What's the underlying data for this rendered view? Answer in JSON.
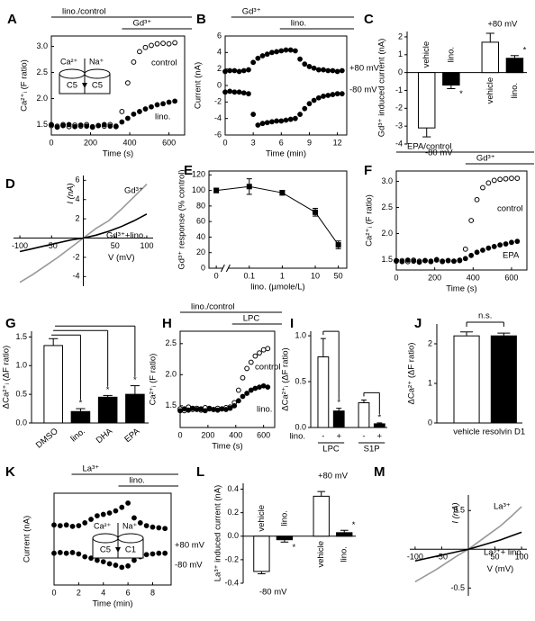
{
  "chart_data": [
    {
      "panel": "A",
      "type": "line",
      "xlabel": "Time (s)",
      "ylabel": "Ca²⁺ᵢ (F ratio)",
      "x": [
        0,
        30,
        60,
        90,
        120,
        150,
        180,
        210,
        240,
        270,
        300,
        330,
        360,
        390,
        420,
        450,
        480,
        510,
        540,
        570,
        600,
        630
      ],
      "xlim": [
        0,
        680
      ],
      "xticks": [
        0,
        200,
        400,
        600
      ],
      "ylim": [
        1.3,
        3.2
      ],
      "yticks": [
        1.5,
        {
          "value": 2,
          "label": "2.0"
        },
        2.5,
        {
          "value": 3,
          "label": "3.0"
        }
      ],
      "series": [
        {
          "name": "control",
          "marker": "open",
          "color": "#000000",
          "values": [
            1.48,
            1.47,
            1.5,
            1.46,
            1.49,
            1.47,
            1.5,
            1.46,
            1.48,
            1.47,
            1.5,
            1.47,
            1.75,
            2.3,
            2.7,
            2.9,
            2.98,
            3.02,
            3.05,
            3.06,
            3.05,
            3.07
          ]
        },
        {
          "name": "lino.",
          "marker": "filled",
          "color": "#000000",
          "values": [
            1.5,
            1.45,
            1.48,
            1.5,
            1.46,
            1.49,
            1.47,
            1.45,
            1.48,
            1.5,
            1.47,
            1.46,
            1.55,
            1.62,
            1.7,
            1.75,
            1.8,
            1.84,
            1.88,
            1.9,
            1.93,
            1.95
          ]
        }
      ],
      "annotations": [
        "lino./control",
        "Gd³⁺"
      ],
      "inset": [
        "Ca²⁺",
        "Na⁺",
        "C5",
        "C5"
      ]
    },
    {
      "panel": "B",
      "type": "line",
      "xlabel": "Time (min)",
      "ylabel": "Current (nA)",
      "x": [
        0,
        0.5,
        1,
        1.5,
        2,
        2.5,
        3,
        3.5,
        4,
        4.5,
        5,
        5.5,
        6,
        6.5,
        7,
        7.5,
        8,
        8.5,
        9,
        9.5,
        10,
        10.5,
        11,
        11.5,
        12,
        12.5
      ],
      "xlim": [
        0,
        13
      ],
      "xticks": [
        0,
        3,
        6,
        9,
        12
      ],
      "ylim": [
        -6,
        6
      ],
      "yticks": [
        -6,
        -4,
        -2,
        0,
        2,
        4,
        6
      ],
      "series": [
        {
          "name": "+80 mV",
          "marker": "filled",
          "color": "#000000",
          "values": [
            1.7,
            1.8,
            1.8,
            1.7,
            1.8,
            1.9,
            2.8,
            3.3,
            3.6,
            3.8,
            4.0,
            4.1,
            4.2,
            4.3,
            4.3,
            4.2,
            3.2,
            2.6,
            2.3,
            2.1,
            1.9,
            1.9,
            1.8,
            1.8,
            1.7,
            1.8
          ]
        },
        {
          "name": "-80 mV",
          "marker": "filled",
          "color": "#000000",
          "values": [
            -0.8,
            -0.7,
            -0.8,
            -0.8,
            -0.9,
            -1.0,
            -3.5,
            -4.8,
            -4.6,
            -4.5,
            -4.4,
            -4.3,
            -4.3,
            -4.2,
            -4.1,
            -4.0,
            -3.5,
            -2.8,
            -2.2,
            -1.8,
            -1.5,
            -1.3,
            -1.2,
            -1.1,
            -1.0,
            -1.0
          ]
        }
      ],
      "annotations": [
        "Gd³⁺",
        "lino."
      ]
    },
    {
      "panel": "C",
      "type": "bar",
      "ylabel": "Gd³⁺ induced current (nA)",
      "categories": [
        "vehicle",
        "lino.",
        "vehicle",
        "lino."
      ],
      "values": [
        -3.1,
        -0.7,
        1.7,
        0.8
      ],
      "errors": [
        0.5,
        0.2,
        0.5,
        0.15
      ],
      "colors": [
        "#ffffff",
        "#000000",
        "#ffffff",
        "#000000"
      ],
      "ylim": [
        -4,
        2.3
      ],
      "yticks": [
        -4,
        -3,
        -2,
        -1,
        0,
        1,
        2
      ],
      "group_labels": [
        "-80 mV",
        "+80 mV"
      ],
      "annotations": [
        "*",
        "*"
      ]
    },
    {
      "panel": "D",
      "type": "iv",
      "xlabel": "V (mV)",
      "ylabel": "I (nA)",
      "x": [
        -100,
        -80,
        -60,
        -40,
        -20,
        0,
        20,
        40,
        60,
        80,
        100
      ],
      "xlim": [
        -110,
        110
      ],
      "xticks": [
        -100,
        -50,
        50,
        100
      ],
      "ylim": [
        -5,
        6.5
      ],
      "yticks": [
        -4,
        -2,
        2,
        4,
        6
      ],
      "series": [
        {
          "name": "Gd³⁺",
          "color": "#999999",
          "values": [
            -4.6,
            -3.8,
            -2.9,
            -2.0,
            -1.0,
            0,
            1.0,
            1.8,
            3.0,
            4.3,
            5.6
          ]
        },
        {
          "name": "Gd³⁺+lino.",
          "color": "#000000",
          "values": [
            -1.4,
            -1.1,
            -0.8,
            -0.5,
            -0.2,
            0,
            0.3,
            0.7,
            1.2,
            1.8,
            2.5
          ]
        }
      ]
    },
    {
      "panel": "E",
      "type": "dose",
      "xscale": "log",
      "xlabel": "lino. (µmole/L)",
      "ylabel": "Gd³⁺ response (% control)",
      "x": [
        0.01,
        0.1,
        1,
        10,
        50
      ],
      "values": [
        100,
        105,
        97,
        72,
        30
      ],
      "errors": [
        3,
        10,
        3,
        5,
        5
      ],
      "xlim": [
        0.006,
        90
      ],
      "xticks": [
        {
          "value": 0.01,
          "label": "0"
        },
        0.1,
        1,
        10,
        50
      ],
      "ylim": [
        0,
        125
      ],
      "yticks": [
        0,
        20,
        40,
        60,
        80,
        100,
        120
      ]
    },
    {
      "panel": "F",
      "type": "line",
      "xlabel": "Time (s)",
      "ylabel": "Ca²⁺ᵢ (F ratio)",
      "x": [
        0,
        30,
        60,
        90,
        120,
        150,
        180,
        210,
        240,
        270,
        300,
        330,
        360,
        390,
        420,
        450,
        480,
        510,
        540,
        570,
        600,
        630
      ],
      "xlim": [
        0,
        680
      ],
      "xticks": [
        0,
        200,
        400,
        600
      ],
      "ylim": [
        1.3,
        3.2
      ],
      "yticks": [
        1.5,
        {
          "value": 2,
          "label": "2.0"
        },
        2.5,
        {
          "value": 3,
          "label": "3.0"
        }
      ],
      "series": [
        {
          "name": "control",
          "marker": "open",
          "color": "#000000",
          "values": [
            1.47,
            1.48,
            1.46,
            1.49,
            1.47,
            1.48,
            1.46,
            1.5,
            1.47,
            1.48,
            1.47,
            1.49,
            1.7,
            2.25,
            2.65,
            2.88,
            2.97,
            3.02,
            3.04,
            3.05,
            3.06,
            3.06
          ]
        },
        {
          "name": "EPA",
          "marker": "filled",
          "color": "#000000",
          "values": [
            1.48,
            1.46,
            1.49,
            1.47,
            1.45,
            1.48,
            1.47,
            1.49,
            1.46,
            1.48,
            1.47,
            1.48,
            1.52,
            1.58,
            1.64,
            1.68,
            1.72,
            1.75,
            1.78,
            1.8,
            1.83,
            1.85
          ]
        }
      ],
      "annotations": [
        "EPA/control",
        "Gd³⁺"
      ]
    },
    {
      "panel": "G",
      "type": "bar",
      "ylabel": "ΔCa²⁺ᵢ (ΔF ratio)",
      "categories": [
        "DMSO",
        "lino.",
        "DHA",
        "EPA"
      ],
      "values": [
        1.35,
        0.2,
        0.45,
        0.5
      ],
      "errors": [
        0.12,
        0.05,
        0.03,
        0.15
      ],
      "colors": [
        "#ffffff",
        "#000000",
        "#000000",
        "#000000"
      ],
      "ylim": [
        0,
        1.6
      ],
      "yticks": [
        {
          "value": 0,
          "label": "0.0"
        },
        0.5,
        {
          "value": 1,
          "label": "1.0"
        },
        1.5
      ],
      "annotations": [
        "*",
        "*",
        "*"
      ]
    },
    {
      "panel": "H",
      "type": "line",
      "xlabel": "Time (s)",
      "ylabel": "Ca²⁺ᵢ (F ratio)",
      "x": [
        0,
        30,
        60,
        90,
        120,
        150,
        180,
        210,
        240,
        270,
        300,
        330,
        360,
        390,
        420,
        450,
        480,
        510,
        540,
        570,
        600,
        630
      ],
      "xlim": [
        0,
        680
      ],
      "xticks": [
        0,
        200,
        400,
        600
      ],
      "ylim": [
        1.15,
        2.7
      ],
      "yticks": [
        1.5,
        {
          "value": 2,
          "label": "2.0"
        },
        2.5
      ],
      "series": [
        {
          "name": "control",
          "marker": "open",
          "color": "#000000",
          "values": [
            1.45,
            1.42,
            1.48,
            1.44,
            1.46,
            1.43,
            1.47,
            1.45,
            1.44,
            1.46,
            1.45,
            1.47,
            1.48,
            1.55,
            1.75,
            1.95,
            2.1,
            2.2,
            2.3,
            2.35,
            2.4,
            2.42
          ]
        },
        {
          "name": "lino.",
          "marker": "filled",
          "color": "#000000",
          "values": [
            1.42,
            1.45,
            1.43,
            1.46,
            1.44,
            1.45,
            1.42,
            1.46,
            1.44,
            1.43,
            1.45,
            1.44,
            1.46,
            1.5,
            1.58,
            1.65,
            1.7,
            1.75,
            1.78,
            1.8,
            1.82,
            1.8
          ]
        }
      ],
      "annotations": [
        "lino./control",
        "LPC"
      ]
    },
    {
      "panel": "I",
      "type": "bar",
      "ylabel": "ΔCa²⁺ᵢ (ΔF ratio)",
      "categories": [
        "-",
        "+",
        "-",
        "+"
      ],
      "values": [
        0.77,
        0.18,
        0.27,
        0.04
      ],
      "errors": [
        0.2,
        0.03,
        0.03,
        0.01
      ],
      "colors": [
        "#ffffff",
        "#000000",
        "#ffffff",
        "#000000"
      ],
      "ylim": [
        0,
        1.05
      ],
      "yticks": [
        {
          "value": 0,
          "label": "0.0"
        },
        0.5,
        {
          "value": 1,
          "label": "1.0"
        }
      ],
      "group_labels": [
        "LPC",
        "S1P"
      ],
      "row_label": "lino.",
      "annotations": [
        "*",
        "*"
      ]
    },
    {
      "panel": "J",
      "type": "bar",
      "ylabel": "ΔCa²⁺ (ΔF ratio)",
      "categories": [
        "vehicle",
        "resolvin D1"
      ],
      "values": [
        2.2,
        2.2
      ],
      "errors": [
        0.1,
        0.07
      ],
      "colors": [
        "#ffffff",
        "#000000"
      ],
      "ylim": [
        0,
        2.5
      ],
      "yticks": [
        0,
        1,
        2
      ],
      "annotations": [
        "n.s."
      ]
    },
    {
      "panel": "K",
      "type": "line",
      "xlabel": "Time (min)",
      "ylabel": "Current (nA)",
      "x": [
        0,
        0.5,
        1,
        1.5,
        2,
        2.5,
        3,
        3.5,
        4,
        4.5,
        5,
        5.5,
        6,
        6.5,
        7,
        7.5,
        8,
        8.5,
        9
      ],
      "xlim": [
        0,
        9.5
      ],
      "xticks": [
        0,
        2,
        4,
        6,
        8
      ],
      "ylim": [
        -0.6,
        0.7
      ],
      "series": [
        {
          "name": "+80 mV",
          "marker": "filled",
          "color": "#000000",
          "values": [
            0.25,
            0.24,
            0.25,
            0.23,
            0.24,
            0.28,
            0.33,
            0.38,
            0.4,
            0.42,
            0.45,
            0.5,
            0.56,
            0.35,
            0.28,
            0.24,
            0.22,
            0.21,
            0.2
          ]
        },
        {
          "name": "-80 mV",
          "marker": "filled",
          "color": "#000000",
          "values": [
            -0.15,
            -0.14,
            -0.15,
            -0.14,
            -0.16,
            -0.2,
            -0.22,
            -0.25,
            -0.27,
            -0.3,
            -0.32,
            -0.35,
            -0.33,
            -0.25,
            -0.2,
            -0.17,
            -0.16,
            -0.15,
            -0.15
          ]
        }
      ],
      "annotations": [
        "La³⁺",
        "lino."
      ],
      "inset": [
        "Ca²⁺",
        "Na⁺",
        "C5",
        "C1"
      ]
    },
    {
      "panel": "L",
      "type": "bar",
      "ylabel": "La³⁺ induced current (nA)",
      "categories": [
        "vehicle",
        "lino.",
        "vehicle",
        "lino."
      ],
      "values": [
        -0.3,
        -0.03,
        0.34,
        0.03
      ],
      "errors": [
        0.02,
        0.02,
        0.04,
        0.02
      ],
      "colors": [
        "#ffffff",
        "#000000",
        "#ffffff",
        "#000000"
      ],
      "ylim": [
        -0.4,
        0.45
      ],
      "yticks": [
        -0.4,
        -0.2,
        {
          "value": 0,
          "label": "0.0"
        },
        0.2,
        0.4
      ],
      "group_labels": [
        "-80 mV",
        "+80 mV"
      ],
      "annotations": [
        "*",
        "*"
      ]
    },
    {
      "panel": "M",
      "type": "iv",
      "xlabel": "V (mV)",
      "ylabel": "I (nA)",
      "x": [
        -100,
        -80,
        -60,
        -40,
        -20,
        0,
        20,
        40,
        60,
        80,
        100
      ],
      "xlim": [
        -110,
        110
      ],
      "xticks": [
        -100,
        -50,
        50,
        100
      ],
      "ylim": [
        -0.6,
        0.7
      ],
      "yticks": [
        -0.5,
        0.5
      ],
      "series": [
        {
          "name": "La³⁺",
          "color": "#999999",
          "values": [
            -0.42,
            -0.34,
            -0.26,
            -0.17,
            -0.08,
            0,
            0.1,
            0.2,
            0.3,
            0.42,
            0.55
          ]
        },
        {
          "name": "La³⁺+ lino.",
          "color": "#000000",
          "values": [
            -0.15,
            -0.12,
            -0.09,
            -0.06,
            -0.03,
            0,
            0.04,
            0.08,
            0.12,
            0.17,
            0.22
          ]
        }
      ]
    }
  ]
}
